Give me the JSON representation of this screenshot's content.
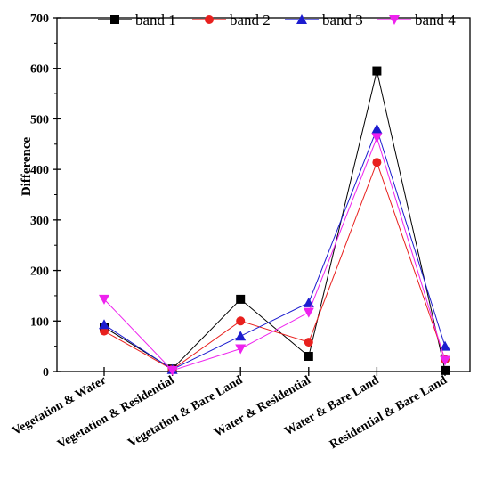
{
  "chart_data": {
    "type": "line",
    "title": "",
    "xlabel": "",
    "ylabel": "Difference",
    "ylim": [
      0,
      700
    ],
    "yticks": [
      0,
      100,
      200,
      300,
      400,
      500,
      600,
      700
    ],
    "categories": [
      "Vegetation & Water",
      "Vegetation & Residential",
      "Vegetation & Bare Land",
      "Water & Residential",
      "Water & Bare Land",
      "Residential & Bare Land"
    ],
    "legend_position": "top",
    "grid": false,
    "series": [
      {
        "name": "band 1",
        "color": "#000000",
        "marker": "square",
        "values": [
          88,
          5,
          143,
          30,
          595,
          2
        ]
      },
      {
        "name": "band 2",
        "color": "#e8201e",
        "marker": "circle",
        "values": [
          80,
          4,
          100,
          58,
          414,
          24
        ]
      },
      {
        "name": "band 3",
        "color": "#1c1ccf",
        "marker": "triangle-up",
        "values": [
          93,
          4,
          70,
          136,
          480,
          50
        ]
      },
      {
        "name": "band 4",
        "color": "#ee22ee",
        "marker": "triangle-down",
        "values": [
          143,
          2,
          45,
          117,
          463,
          22
        ]
      }
    ]
  }
}
